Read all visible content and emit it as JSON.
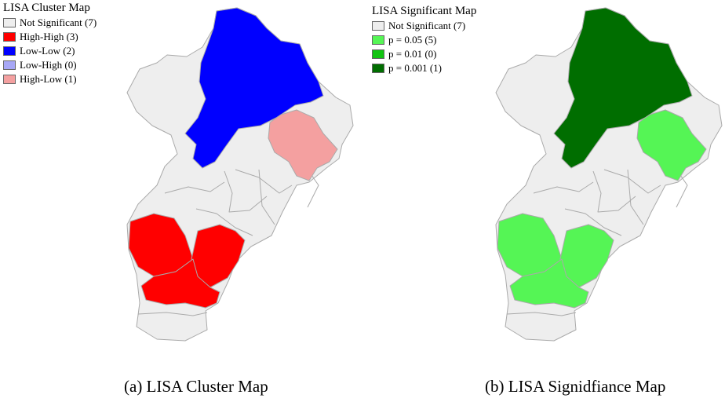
{
  "left_map": {
    "legend_title": "LISA Cluster Map",
    "legend_items": [
      {
        "label": "Not Significant (7)",
        "color": "#eeeeee"
      },
      {
        "label": "High-High (3)",
        "color": "#ff0000"
      },
      {
        "label": "Low-Low (2)",
        "color": "#0000ff"
      },
      {
        "label": "Low-High (0)",
        "color": "#a7a7f6"
      },
      {
        "label": "High-Low (1)",
        "color": "#f4a0a0"
      }
    ],
    "caption": "(a) LISA Cluster Map",
    "region_colors": [
      "#eeeeee",
      "#0000ff",
      "#f4a0a0",
      "#ff0000"
    ]
  },
  "right_map": {
    "legend_title": "LISA Significant Map",
    "legend_items": [
      {
        "label": "Not Significant (7)",
        "color": "#eeeeee"
      },
      {
        "label": "p = 0.05 (5)",
        "color": "#55f555"
      },
      {
        "label": "p = 0.01 (0)",
        "color": "#11c411"
      },
      {
        "label": "p = 0.001 (1)",
        "color": "#006e00"
      }
    ],
    "caption": "(b) LISA Signidfiance Map",
    "region_colors": [
      "#eeeeee",
      "#55f555",
      "#006e00"
    ]
  },
  "outline_color": "#aaaaaa"
}
